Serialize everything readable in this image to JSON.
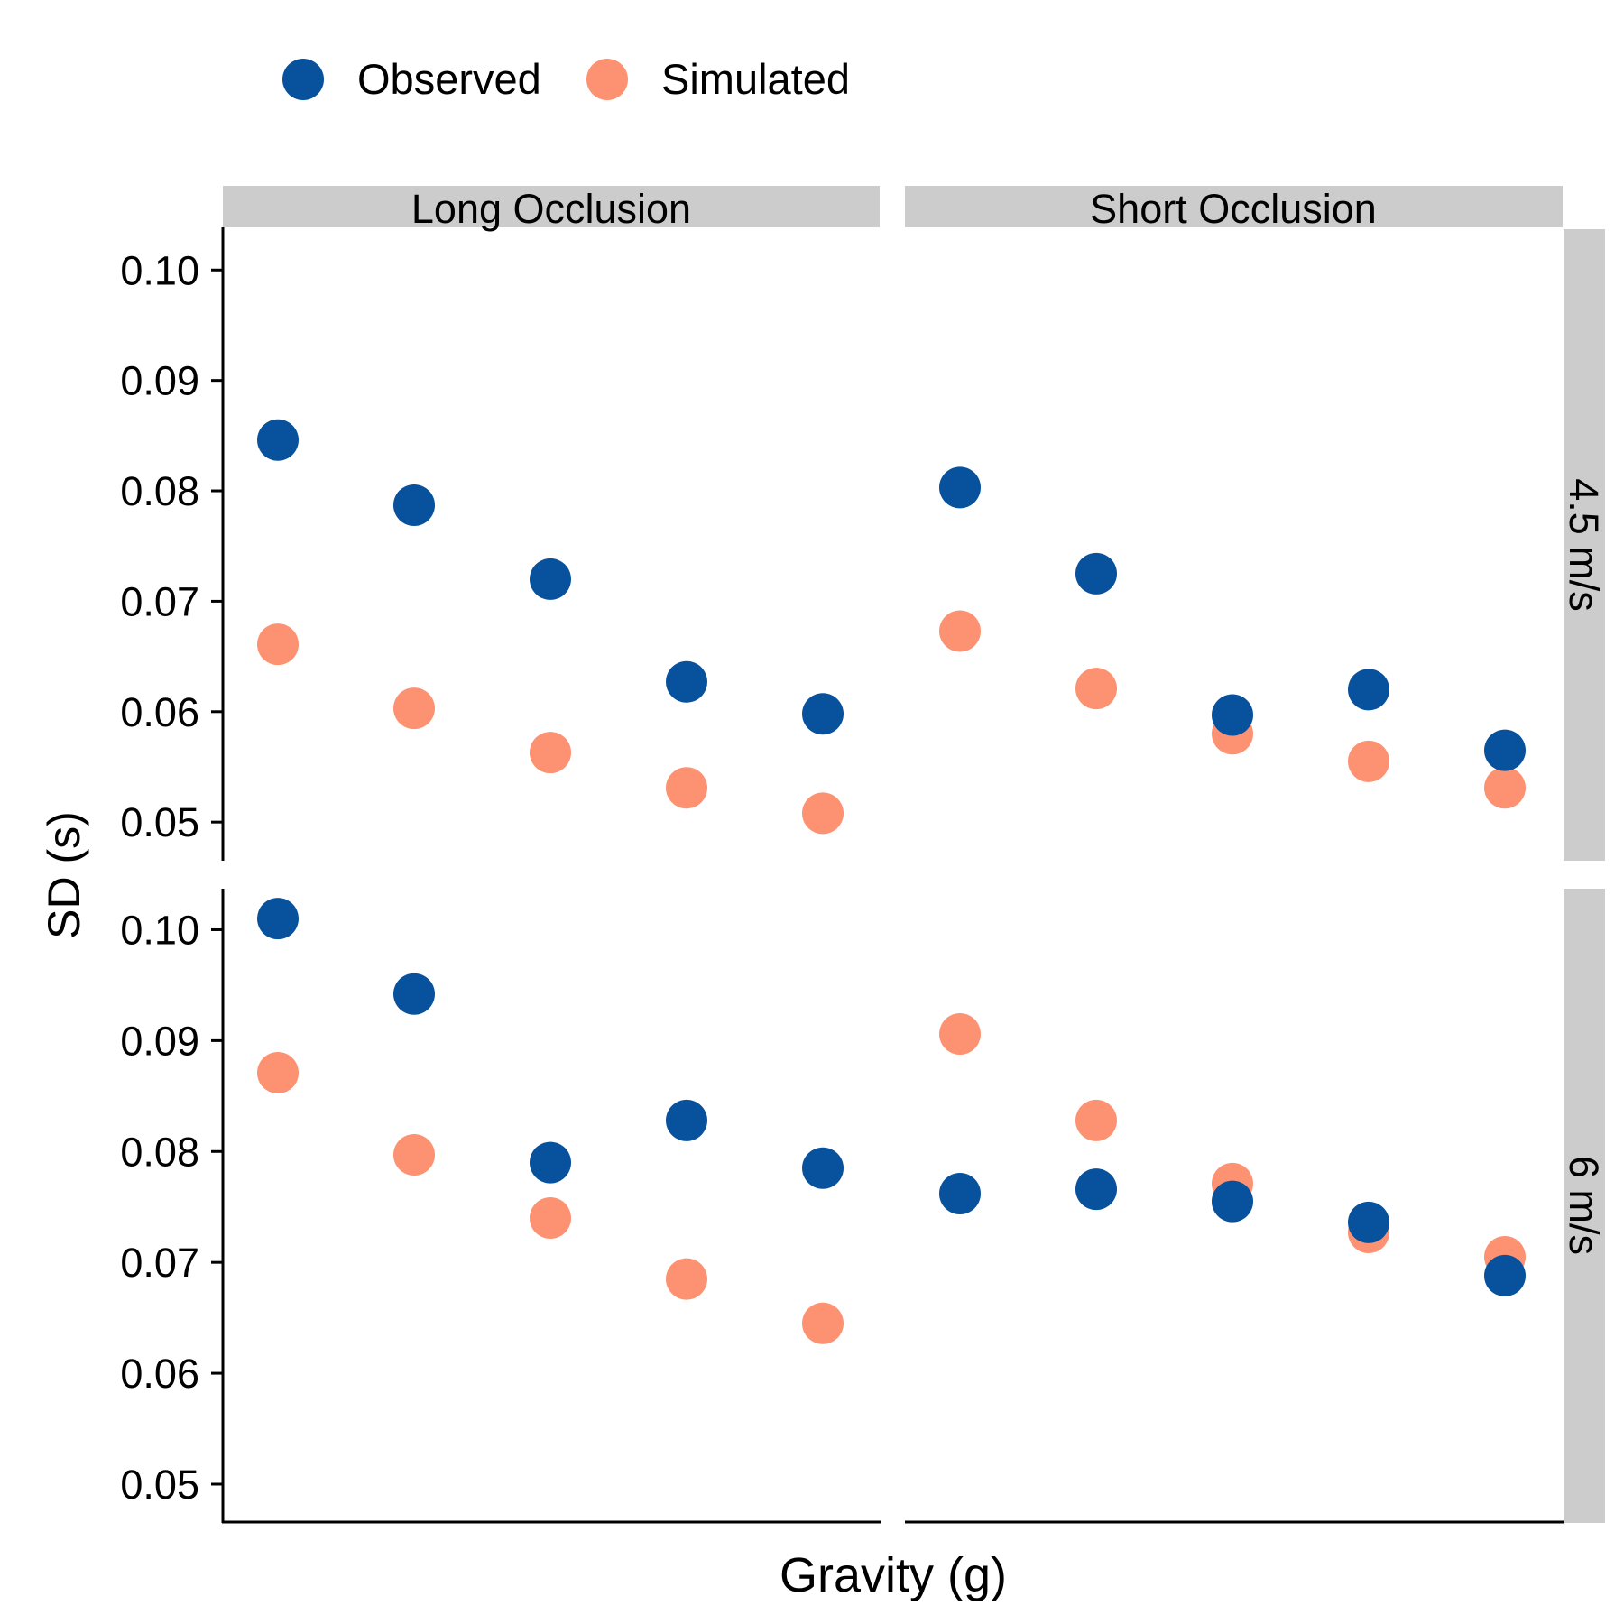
{
  "chart_data": {
    "type": "scatter",
    "legend": {
      "placement": "top",
      "entries": [
        {
          "label": "Observed",
          "color": "#08519c"
        },
        {
          "label": "Simulated",
          "color": "#fc9272"
        }
      ]
    },
    "xlabel": "Gravity (g)",
    "ylabel": "SD (s)",
    "ylim": [
      0.0465,
      0.1037
    ],
    "yticks": [
      "0.10",
      "0.09",
      "0.08",
      "0.07",
      "0.06",
      "0.05"
    ],
    "grid": false,
    "facet_columns": [
      "Long Occlusion",
      "Short Occlusion"
    ],
    "facet_rows": [
      "4.5 m/s",
      "6 m/s"
    ],
    "x_positions": [
      1,
      2,
      3,
      4,
      5
    ],
    "panels": [
      {
        "column": "Long Occlusion",
        "row": "4.5 m/s",
        "series": [
          {
            "name": "Observed",
            "values": [
              0.0846,
              0.0787,
              0.072,
              0.0627,
              0.0598
            ]
          },
          {
            "name": "Simulated",
            "values": [
              0.0661,
              0.0603,
              0.0563,
              0.0531,
              0.0508
            ]
          }
        ]
      },
      {
        "column": "Short Occlusion",
        "row": "4.5 m/s",
        "series": [
          {
            "name": "Observed",
            "values": [
              0.0803,
              0.0725,
              0.0597,
              0.062,
              0.0565
            ]
          },
          {
            "name": "Simulated",
            "values": [
              0.0673,
              0.0621,
              0.058,
              0.0555,
              0.0531
            ]
          }
        ]
      },
      {
        "column": "Long Occlusion",
        "row": "6 m/s",
        "series": [
          {
            "name": "Observed",
            "values": [
              0.101,
              0.0942,
              0.079,
              0.0828,
              0.0785
            ]
          },
          {
            "name": "Simulated",
            "values": [
              0.0871,
              0.0797,
              0.074,
              0.0685,
              0.0645
            ]
          }
        ]
      },
      {
        "column": "Short Occlusion",
        "row": "6 m/s",
        "series": [
          {
            "name": "Observed",
            "values": [
              0.0762,
              0.0766,
              0.0755,
              0.0736,
              0.0688
            ]
          },
          {
            "name": "Simulated",
            "values": [
              0.0906,
              0.0828,
              0.0771,
              0.0727,
              0.0705
            ]
          }
        ]
      }
    ]
  }
}
